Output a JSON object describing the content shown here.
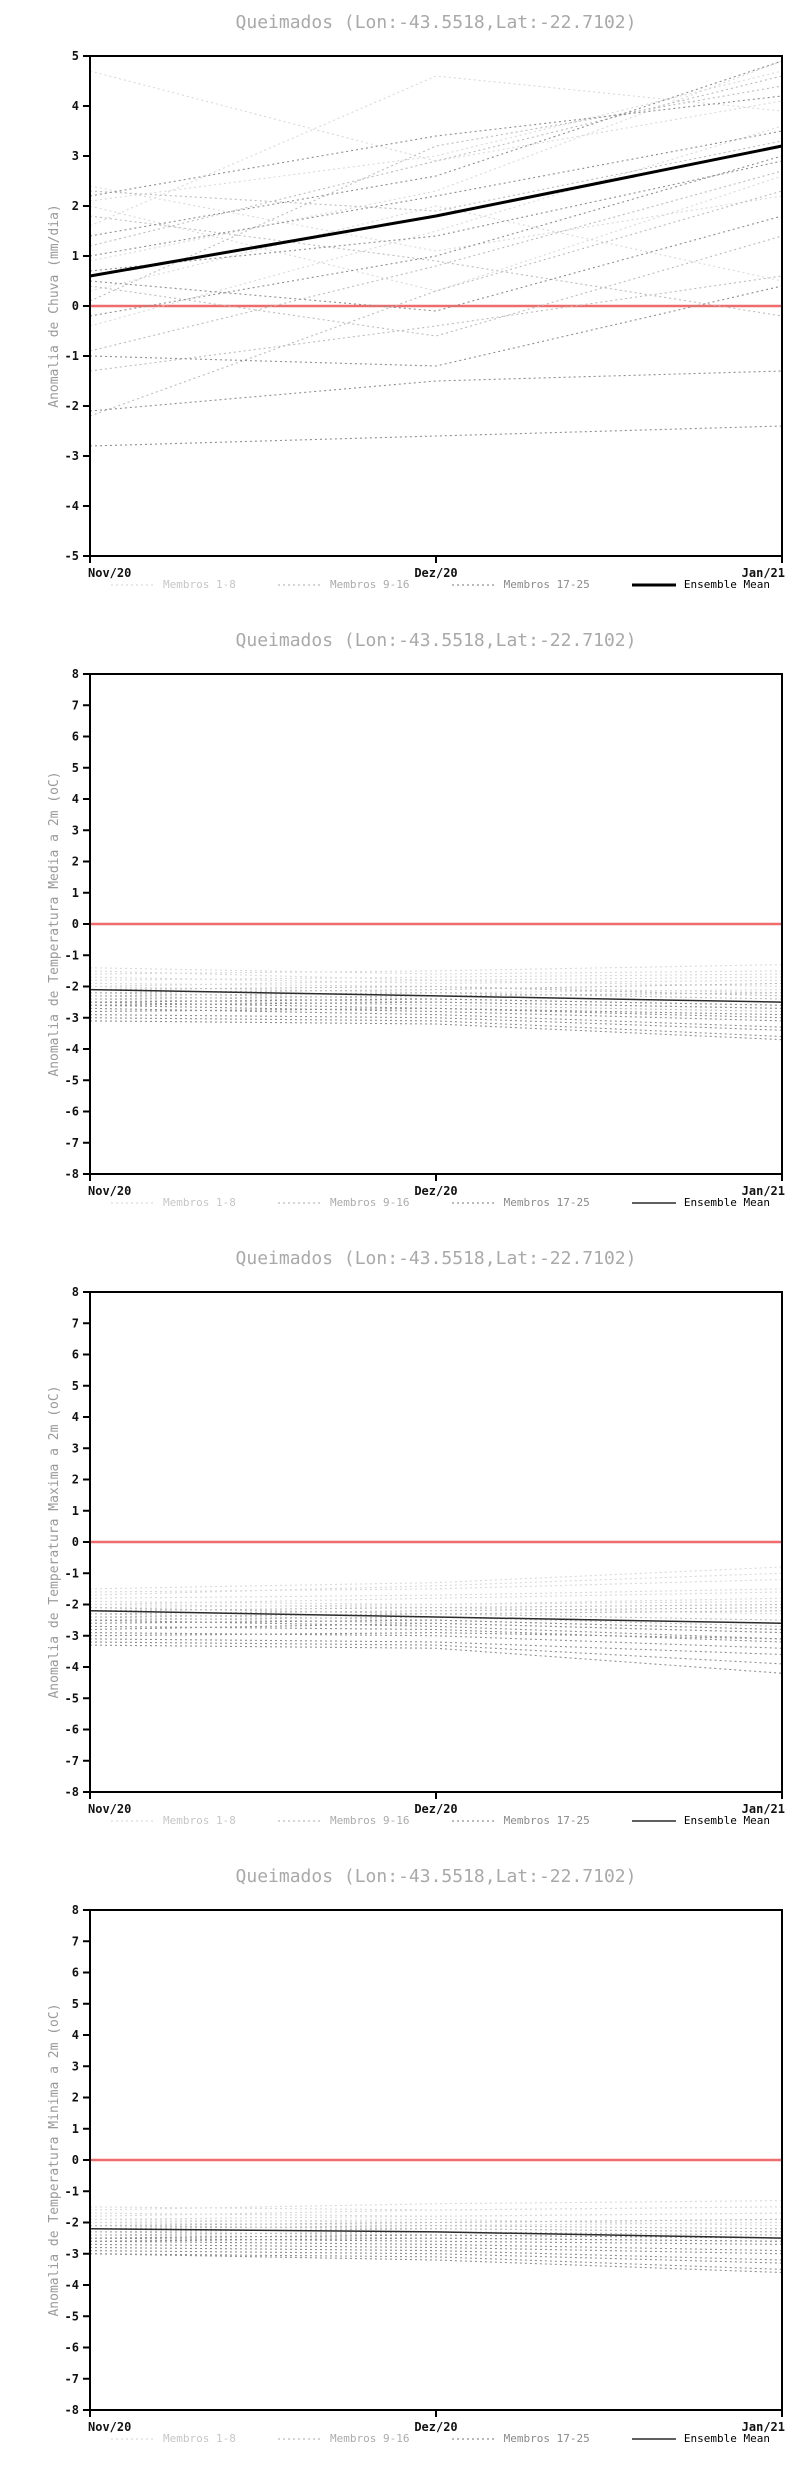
{
  "page": {
    "background": "#ffffff"
  },
  "charts": [
    {
      "title": "Queimados (Lon:-43.5518,Lat:-22.7102)",
      "ylabel": "Anomalia de Chuva (mm/dia)",
      "chart_data": {
        "type": "line",
        "x_labels": [
          "Nov/20",
          "Dez/20",
          "Jan/21"
        ],
        "ylim": [
          -5,
          5
        ],
        "yticks": [
          5,
          4,
          3,
          2,
          1,
          0,
          -1,
          -2,
          -3,
          -4,
          -5
        ],
        "zero_line": {
          "value": 0,
          "color": "#ee6c6c"
        },
        "ensemble_mean": {
          "name": "Ensemble Mean",
          "values": [
            0.6,
            1.8,
            3.2
          ],
          "color": "#000000",
          "width": 3
        },
        "members": [
          {
            "group": "Membros 1-8",
            "color": "#d9d9d9",
            "series": [
              [
                2.1,
                3.0,
                4.7
              ],
              [
                4.7,
                2.9,
                4.1
              ],
              [
                0.9,
                2.3,
                4.9
              ],
              [
                2.0,
                0.3,
                2.6
              ],
              [
                -0.4,
                1.5,
                3.6
              ],
              [
                1.6,
                4.6,
                3.9
              ],
              [
                0.3,
                2.0,
                0.5
              ],
              [
                2.4,
                1.1,
                2.2
              ]
            ]
          },
          {
            "group": "Membros 9-16",
            "color": "#bcbcbc",
            "series": [
              [
                -2.2,
                0.3,
                2.3
              ],
              [
                1.2,
                2.9,
                4.6
              ],
              [
                0.4,
                -0.6,
                1.4
              ],
              [
                2.3,
                1.9,
                3.3
              ],
              [
                -0.9,
                0.8,
                2.7
              ],
              [
                0.1,
                3.2,
                4.4
              ],
              [
                1.8,
                0.9,
                -0.2
              ],
              [
                -1.3,
                -0.4,
                0.6
              ]
            ]
          },
          {
            "group": "Membros 17-25",
            "color": "#8f8f8f",
            "series": [
              [
                -2.8,
                -2.6,
                -2.4
              ],
              [
                -2.1,
                -1.5,
                -1.3
              ],
              [
                -1.0,
                -1.2,
                0.4
              ],
              [
                0.7,
                1.4,
                2.9
              ],
              [
                1.4,
                2.6,
                4.9
              ],
              [
                -0.2,
                1.0,
                3.0
              ],
              [
                2.2,
                3.4,
                4.2
              ],
              [
                0.5,
                -0.1,
                1.8
              ],
              [
                1.0,
                2.2,
                3.5
              ]
            ]
          }
        ]
      },
      "legend": [
        {
          "label": "Membros 1-8",
          "color": "#d9d9d9",
          "text_color": "#c6c6c6",
          "dash": "2 3",
          "width": 1.2
        },
        {
          "label": "Membros 9-16",
          "color": "#bcbcbc",
          "text_color": "#ababab",
          "dash": "2 3",
          "width": 1.2
        },
        {
          "label": "Membros 17-25",
          "color": "#8f8f8f",
          "text_color": "#8a8a8a",
          "dash": "2 3",
          "width": 1.2
        },
        {
          "label": "Ensemble Mean",
          "color": "#000000",
          "text_color": "#000000",
          "dash": "",
          "width": 3
        }
      ]
    },
    {
      "title": "Queimados (Lon:-43.5518,Lat:-22.7102)",
      "ylabel": "Anomalia de Temperatura Media a 2m (oC)",
      "chart_data": {
        "type": "line",
        "x_labels": [
          "Nov/20",
          "Dez/20",
          "Jan/21"
        ],
        "ylim": [
          -8,
          8
        ],
        "yticks": [
          8,
          7,
          6,
          5,
          4,
          3,
          2,
          1,
          0,
          -1,
          -2,
          -3,
          -4,
          -5,
          -6,
          -7,
          -8
        ],
        "zero_line": {
          "value": 0,
          "color": "#ee6c6c"
        },
        "ensemble_mean": {
          "name": "Ensemble Mean",
          "values": [
            -2.1,
            -2.3,
            -2.5
          ],
          "color": "#2b2b2b",
          "width": 1.5
        },
        "members": [
          {
            "group": "Membros 1-8",
            "color": "#d9d9d9",
            "series": [
              [
                -1.4,
                -1.6,
                -1.5
              ],
              [
                -1.6,
                -1.5,
                -1.3
              ],
              [
                -1.5,
                -1.8,
                -2.0
              ],
              [
                -1.7,
                -1.9,
                -1.8
              ],
              [
                -1.8,
                -1.7,
                -1.6
              ],
              [
                -1.9,
                -2.0,
                -2.2
              ],
              [
                -2.0,
                -1.8,
                -1.7
              ],
              [
                -2.0,
                -2.2,
                -2.1
              ]
            ]
          },
          {
            "group": "Membros 9-16",
            "color": "#bcbcbc",
            "series": [
              [
                -2.1,
                -2.0,
                -2.3
              ],
              [
                -2.1,
                -2.3,
                -2.5
              ],
              [
                -2.2,
                -2.1,
                -1.9
              ],
              [
                -2.2,
                -2.4,
                -2.6
              ],
              [
                -2.3,
                -2.2,
                -2.4
              ],
              [
                -2.3,
                -2.5,
                -2.7
              ],
              [
                -2.4,
                -2.3,
                -2.2
              ],
              [
                -2.4,
                -2.6,
                -2.8
              ]
            ]
          },
          {
            "group": "Membros 17-25",
            "color": "#8f8f8f",
            "series": [
              [
                -2.5,
                -2.4,
                -2.6
              ],
              [
                -2.5,
                -2.7,
                -3.0
              ],
              [
                -2.6,
                -2.5,
                -2.7
              ],
              [
                -2.6,
                -2.8,
                -3.1
              ],
              [
                -2.7,
                -2.9,
                -3.3
              ],
              [
                -2.8,
                -2.7,
                -2.9
              ],
              [
                -2.9,
                -3.0,
                -3.4
              ],
              [
                -3.0,
                -3.1,
                -3.6
              ],
              [
                -3.1,
                -3.2,
                -3.7
              ]
            ]
          }
        ]
      },
      "legend": [
        {
          "label": "Membros 1-8",
          "color": "#d9d9d9",
          "text_color": "#c6c6c6",
          "dash": "2 3",
          "width": 1.2
        },
        {
          "label": "Membros 9-16",
          "color": "#bcbcbc",
          "text_color": "#ababab",
          "dash": "2 3",
          "width": 1.2
        },
        {
          "label": "Membros 17-25",
          "color": "#8f8f8f",
          "text_color": "#8a8a8a",
          "dash": "2 3",
          "width": 1.2
        },
        {
          "label": "Ensemble Mean",
          "color": "#2b2b2b",
          "text_color": "#000000",
          "dash": "",
          "width": 1.5
        }
      ]
    },
    {
      "title": "Queimados (Lon:-43.5518,Lat:-22.7102)",
      "ylabel": "Anomalia de Temperatura Maxima a 2m (oC)",
      "chart_data": {
        "type": "line",
        "x_labels": [
          "Nov/20",
          "Dez/20",
          "Jan/21"
        ],
        "ylim": [
          -8,
          8
        ],
        "yticks": [
          8,
          7,
          6,
          5,
          4,
          3,
          2,
          1,
          0,
          -1,
          -2,
          -3,
          -4,
          -5,
          -6,
          -7,
          -8
        ],
        "zero_line": {
          "value": 0,
          "color": "#ee6c6c"
        },
        "ensemble_mean": {
          "name": "Ensemble Mean",
          "values": [
            -2.2,
            -2.4,
            -2.6
          ],
          "color": "#2b2b2b",
          "width": 1.5
        },
        "members": [
          {
            "group": "Membros 1-8",
            "color": "#d9d9d9",
            "series": [
              [
                -1.5,
                -1.3,
                -0.8
              ],
              [
                -1.6,
                -1.5,
                -1.2
              ],
              [
                -1.7,
                -1.4,
                -1.0
              ],
              [
                -1.8,
                -1.7,
                -1.5
              ],
              [
                -1.9,
                -2.0,
                -1.8
              ],
              [
                -2.0,
                -1.8,
                -1.6
              ],
              [
                -2.0,
                -2.1,
                -2.3
              ],
              [
                -2.1,
                -2.0,
                -1.9
              ]
            ]
          },
          {
            "group": "Membros 9-16",
            "color": "#bcbcbc",
            "series": [
              [
                -2.1,
                -2.3,
                -2.5
              ],
              [
                -2.2,
                -2.1,
                -2.0
              ],
              [
                -2.2,
                -2.4,
                -2.7
              ],
              [
                -2.3,
                -2.2,
                -2.1
              ],
              [
                -2.3,
                -2.5,
                -2.8
              ],
              [
                -2.4,
                -2.3,
                -2.2
              ],
              [
                -2.4,
                -2.6,
                -2.9
              ],
              [
                -2.5,
                -2.4,
                -2.6
              ]
            ]
          },
          {
            "group": "Membros 17-25",
            "color": "#8f8f8f",
            "series": [
              [
                -2.5,
                -2.7,
                -3.1
              ],
              [
                -2.6,
                -2.5,
                -2.8
              ],
              [
                -2.7,
                -2.8,
                -3.2
              ],
              [
                -2.8,
                -2.6,
                -2.9
              ],
              [
                -2.9,
                -3.0,
                -3.4
              ],
              [
                -3.0,
                -2.9,
                -3.1
              ],
              [
                -3.1,
                -3.2,
                -3.6
              ],
              [
                -3.2,
                -3.3,
                -3.9
              ],
              [
                -3.3,
                -3.4,
                -4.2
              ]
            ]
          }
        ]
      },
      "legend": [
        {
          "label": "Membros 1-8",
          "color": "#d9d9d9",
          "text_color": "#c6c6c6",
          "dash": "2 3",
          "width": 1.2
        },
        {
          "label": "Membros 9-16",
          "color": "#bcbcbc",
          "text_color": "#ababab",
          "dash": "2 3",
          "width": 1.2
        },
        {
          "label": "Membros 17-25",
          "color": "#8f8f8f",
          "text_color": "#8a8a8a",
          "dash": "2 3",
          "width": 1.2
        },
        {
          "label": "Ensemble Mean",
          "color": "#2b2b2b",
          "text_color": "#000000",
          "dash": "",
          "width": 1.5
        }
      ]
    },
    {
      "title": "Queimados (Lon:-43.5518,Lat:-22.7102)",
      "ylabel": "Anomalia de Temperatura Minima a 2m (oC)",
      "chart_data": {
        "type": "line",
        "x_labels": [
          "Nov/20",
          "Dez/20",
          "Jan/21"
        ],
        "ylim": [
          -8,
          8
        ],
        "yticks": [
          8,
          7,
          6,
          5,
          4,
          3,
          2,
          1,
          0,
          -1,
          -2,
          -3,
          -4,
          -5,
          -6,
          -7,
          -8
        ],
        "zero_line": {
          "value": 0,
          "color": "#ee6c6c"
        },
        "ensemble_mean": {
          "name": "Ensemble Mean",
          "values": [
            -2.2,
            -2.3,
            -2.5
          ],
          "color": "#2b2b2b",
          "width": 1.5
        },
        "members": [
          {
            "group": "Membros 1-8",
            "color": "#d9d9d9",
            "series": [
              [
                -1.5,
                -1.6,
                -1.5
              ],
              [
                -1.6,
                -1.4,
                -1.3
              ],
              [
                -1.7,
                -1.8,
                -1.7
              ],
              [
                -1.8,
                -1.6,
                -1.5
              ],
              [
                -1.9,
                -2.0,
                -1.9
              ],
              [
                -1.9,
                -1.8,
                -1.7
              ],
              [
                -2.0,
                -2.1,
                -2.0
              ],
              [
                -2.0,
                -1.9,
                -2.1
              ]
            ]
          },
          {
            "group": "Membros 9-16",
            "color": "#bcbcbc",
            "series": [
              [
                -2.1,
                -2.2,
                -2.3
              ],
              [
                -2.1,
                -2.0,
                -1.9
              ],
              [
                -2.2,
                -2.3,
                -2.4
              ],
              [
                -2.2,
                -2.1,
                -2.2
              ],
              [
                -2.3,
                -2.4,
                -2.5
              ],
              [
                -2.3,
                -2.2,
                -2.3
              ],
              [
                -2.4,
                -2.5,
                -2.6
              ],
              [
                -2.4,
                -2.3,
                -2.4
              ]
            ]
          },
          {
            "group": "Membros 17-25",
            "color": "#8f8f8f",
            "series": [
              [
                -2.5,
                -2.6,
                -2.7
              ],
              [
                -2.5,
                -2.4,
                -2.5
              ],
              [
                -2.6,
                -2.7,
                -2.9
              ],
              [
                -2.6,
                -2.5,
                -2.6
              ],
              [
                -2.7,
                -2.8,
                -3.0
              ],
              [
                -2.8,
                -2.9,
                -3.2
              ],
              [
                -2.9,
                -3.0,
                -3.3
              ],
              [
                -3.0,
                -3.1,
                -3.5
              ],
              [
                -3.0,
                -3.2,
                -3.6
              ]
            ]
          }
        ]
      },
      "legend": [
        {
          "label": "Membros 1-8",
          "color": "#d9d9d9",
          "text_color": "#c6c6c6",
          "dash": "2 3",
          "width": 1.2
        },
        {
          "label": "Membros 9-16",
          "color": "#bcbcbc",
          "text_color": "#ababab",
          "dash": "2 3",
          "width": 1.2
        },
        {
          "label": "Membros 17-25",
          "color": "#8f8f8f",
          "text_color": "#8a8a8a",
          "dash": "2 3",
          "width": 1.2
        },
        {
          "label": "Ensemble Mean",
          "color": "#2b2b2b",
          "text_color": "#000000",
          "dash": "",
          "width": 1.5
        }
      ]
    }
  ]
}
